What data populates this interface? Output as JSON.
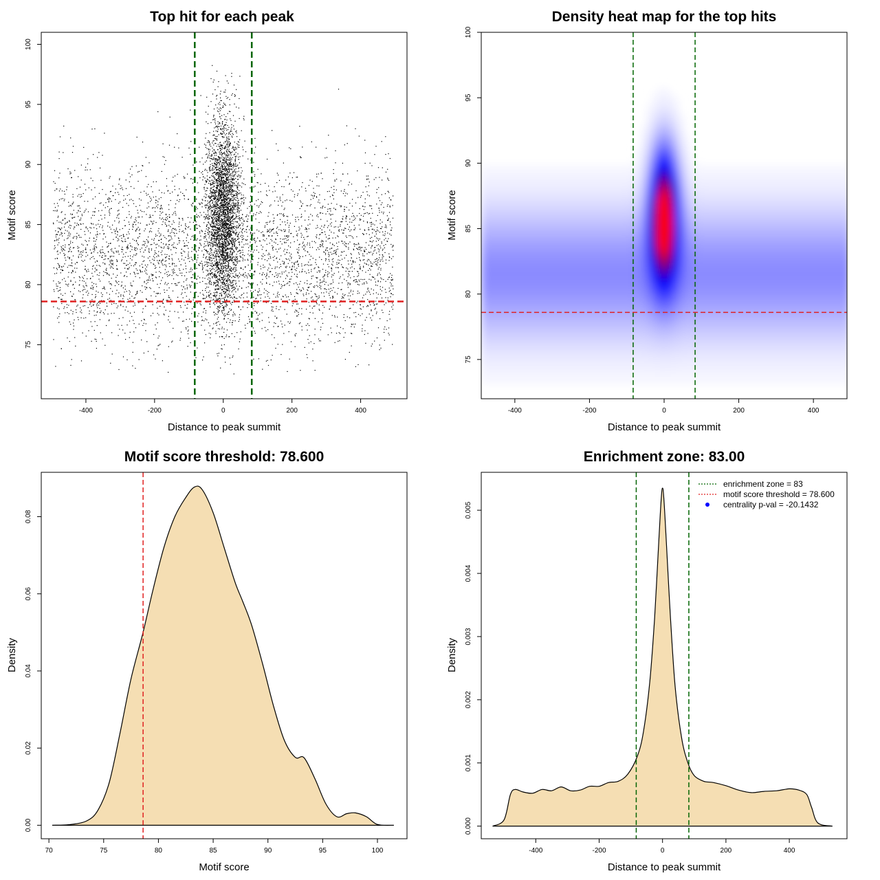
{
  "colors": {
    "scatter_point": "#000000",
    "enrichment_line": "#006400",
    "threshold_line": "#e02020",
    "density_fill": "#f5deb3",
    "heat_low": "#ffffff",
    "heat_mid": "#0000ff",
    "heat_high": "#ff0000"
  },
  "chart_data": [
    {
      "id": "scatter",
      "type": "scatter",
      "title": "Top hit for each peak",
      "xlabel": "Distance to peak summit",
      "ylabel": "Motif score",
      "xlim": [
        -530,
        535
      ],
      "ylim": [
        70.5,
        101
      ],
      "xticks": [
        -400,
        -200,
        0,
        200,
        400
      ],
      "yticks": [
        75,
        80,
        85,
        90,
        95,
        100
      ],
      "xtick_labels": [
        "-400",
        "-200",
        "0",
        "200",
        "400"
      ],
      "ytick_labels": [
        "75",
        "80",
        "85",
        "90",
        "95",
        "100"
      ],
      "vlines": [
        -83,
        83
      ],
      "hline": 78.6,
      "grid": false
    },
    {
      "id": "heatmap",
      "type": "heatmap",
      "title": "Density heat map for the top hits",
      "xlabel": "Distance to peak summit",
      "ylabel": "Motif score",
      "xlim": [
        -490,
        490
      ],
      "ylim": [
        72,
        100
      ],
      "xticks": [
        -400,
        -200,
        0,
        200,
        400
      ],
      "yticks": [
        75,
        80,
        85,
        90,
        95,
        100
      ],
      "xtick_labels": [
        "-400",
        "-200",
        "0",
        "200",
        "400"
      ],
      "ytick_labels": [
        "75",
        "80",
        "85",
        "90",
        "95",
        "100"
      ],
      "vlines": [
        -83,
        83
      ],
      "hline": 78.6,
      "grid": false
    },
    {
      "id": "score_density",
      "type": "area",
      "title": "Motif score threshold: 78.600",
      "xlabel": "Motif score",
      "ylabel": "Density",
      "xlim": [
        69.3,
        102.7
      ],
      "ylim": [
        -0.0035,
        0.0915
      ],
      "xticks": [
        70,
        75,
        80,
        85,
        90,
        95,
        100
      ],
      "yticks": [
        0,
        0.02,
        0.04,
        0.06,
        0.08
      ],
      "xtick_labels": [
        "70",
        "75",
        "80",
        "85",
        "90",
        "95",
        "100"
      ],
      "ytick_labels": [
        "0.00",
        "0.02",
        "0.04",
        "0.06",
        "0.08"
      ],
      "vlines": [
        78.6
      ],
      "x": [
        70.3,
        72,
        73.5,
        74.5,
        75.5,
        76.5,
        77.5,
        78.6,
        79.5,
        80.5,
        81.5,
        82.5,
        83.3,
        84,
        85,
        86,
        87,
        87.7,
        88.5,
        89.5,
        90.5,
        91.5,
        92.5,
        93.3,
        94.3,
        95.3,
        96.3,
        97.2,
        98,
        99,
        100,
        101.5
      ],
      "y": [
        0.0,
        0.0002,
        0.0012,
        0.004,
        0.011,
        0.024,
        0.038,
        0.05,
        0.061,
        0.072,
        0.08,
        0.085,
        0.0877,
        0.087,
        0.081,
        0.072,
        0.063,
        0.058,
        0.052,
        0.042,
        0.031,
        0.022,
        0.0176,
        0.0175,
        0.012,
        0.0055,
        0.0022,
        0.003,
        0.0032,
        0.0022,
        0.0002,
        0.0
      ]
    },
    {
      "id": "distance_density",
      "type": "area",
      "title": "Enrichment zone: 83.00",
      "xlabel": "Distance to peak summit",
      "ylabel": "Density",
      "xlim": [
        -572,
        582
      ],
      "ylim": [
        -0.0002,
        0.0056
      ],
      "xticks": [
        -400,
        -200,
        0,
        200,
        400
      ],
      "yticks": [
        0,
        0.001,
        0.002,
        0.003,
        0.004,
        0.005
      ],
      "xtick_labels": [
        "-400",
        "-200",
        "0",
        "200",
        "400"
      ],
      "ytick_labels": [
        "0.000",
        "0.001",
        "0.002",
        "0.003",
        "0.004",
        "0.005"
      ],
      "vlines": [
        -83,
        83
      ],
      "legend_position": "top-right",
      "legend": [
        {
          "label": "enrichment zone = 83",
          "style": "dotted",
          "color": "#006400"
        },
        {
          "label": "motif score threshold = 78.600",
          "style": "dotted",
          "color": "#e02020"
        },
        {
          "label": "centrality p-val = -20.1432",
          "style": "point",
          "color": "#0000ff"
        }
      ],
      "x": [
        -536,
        -500,
        -480,
        -465,
        -440,
        -410,
        -380,
        -350,
        -320,
        -290,
        -260,
        -230,
        -200,
        -170,
        -140,
        -110,
        -80,
        -60,
        -40,
        -25,
        -12,
        -4,
        0,
        4,
        12,
        25,
        40,
        60,
        80,
        100,
        130,
        160,
        200,
        240,
        280,
        320,
        360,
        400,
        430,
        455,
        470,
        490,
        536
      ],
      "y": [
        0.0,
        0.0001,
        0.0005,
        0.00058,
        0.00054,
        0.00052,
        0.00058,
        0.00056,
        0.00062,
        0.00056,
        0.00057,
        0.00063,
        0.00063,
        0.00069,
        0.00071,
        0.00082,
        0.0011,
        0.0015,
        0.0023,
        0.0033,
        0.0045,
        0.0052,
        0.00535,
        0.0052,
        0.0045,
        0.0033,
        0.0022,
        0.0014,
        0.001,
        0.0008,
        0.00071,
        0.00069,
        0.00064,
        0.00057,
        0.00053,
        0.00055,
        0.00056,
        0.00059,
        0.00057,
        0.0005,
        0.0003,
        5e-05,
        0.0
      ]
    }
  ]
}
